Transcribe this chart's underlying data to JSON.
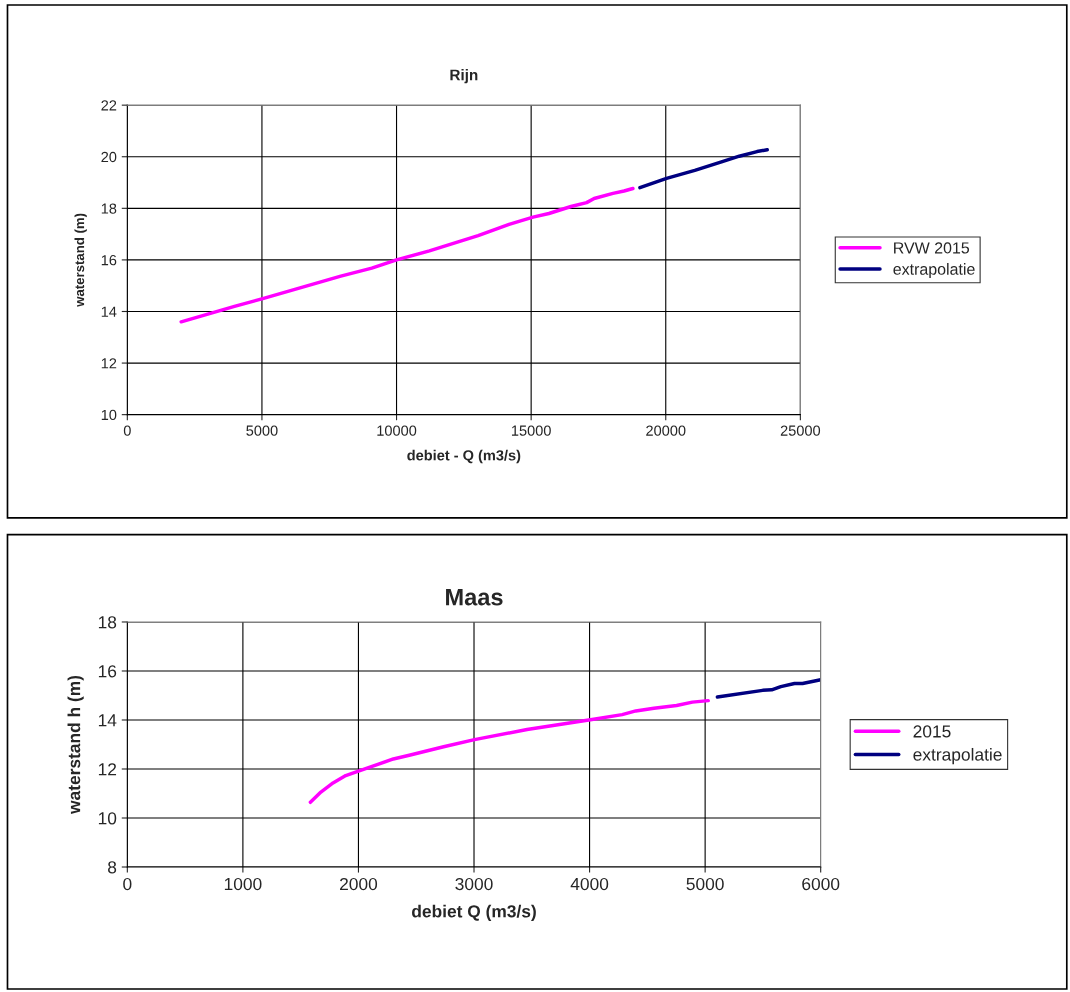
{
  "chart_data": [
    {
      "type": "line",
      "title": "Rijn",
      "xlabel": "debiet - Q (m3/s)",
      "ylabel": "waterstand (m)",
      "xlim": [
        0,
        25000
      ],
      "xticks": [
        0,
        5000,
        10000,
        15000,
        20000,
        25000
      ],
      "ylim": [
        10,
        22
      ],
      "yticks": [
        10,
        12,
        14,
        16,
        18,
        20,
        22
      ],
      "grid": true,
      "legend": "right",
      "series": [
        {
          "name": "RVW 2015",
          "color": "#ff00ff",
          "x": [
            2000,
            3980,
            5030,
            7930,
            9080,
            10000,
            11220,
            13030,
            14180,
            15070,
            15660,
            16480,
            17060,
            17340,
            18040,
            18450,
            18780
          ],
          "values": [
            13.6,
            14.2,
            14.5,
            15.37,
            15.68,
            16.0,
            16.35,
            16.94,
            17.38,
            17.66,
            17.8,
            18.07,
            18.22,
            18.38,
            18.58,
            18.67,
            18.77
          ]
        },
        {
          "name": "extrapolatie",
          "color": "#000080",
          "x": [
            19040,
            20030,
            21080,
            22070,
            22730,
            23390,
            23770
          ],
          "values": [
            18.8,
            19.16,
            19.47,
            19.8,
            20.02,
            20.2,
            20.27
          ]
        }
      ]
    },
    {
      "type": "line",
      "title": "Maas",
      "xlabel": "debiet Q (m3/s)",
      "ylabel": "waterstand h (m)",
      "xlim": [
        0,
        6000
      ],
      "xticks": [
        0,
        1000,
        2000,
        3000,
        4000,
        5000,
        6000
      ],
      "ylim": [
        8,
        18
      ],
      "yticks": [
        8,
        10,
        12,
        14,
        16,
        18
      ],
      "grid": true,
      "legend": "right",
      "series": [
        {
          "name": "2015",
          "color": "#ff00ff",
          "x": [
            1584,
            1675,
            1780,
            1890,
            2000,
            2302,
            2440,
            2737,
            3004,
            3459,
            4008,
            4282,
            4400,
            4557,
            4753,
            4890,
            5027
          ],
          "values": [
            10.64,
            11.06,
            11.43,
            11.73,
            11.91,
            12.41,
            12.56,
            12.91,
            13.2,
            13.61,
            14.01,
            14.22,
            14.37,
            14.48,
            14.59,
            14.73,
            14.79
          ]
        },
        {
          "name": "extrapolatie",
          "color": "#000080",
          "x": [
            5106,
            5498,
            5576,
            5655,
            5773,
            5843,
            6000
          ],
          "values": [
            14.94,
            15.21,
            15.23,
            15.36,
            15.49,
            15.49,
            15.64
          ]
        }
      ]
    }
  ]
}
